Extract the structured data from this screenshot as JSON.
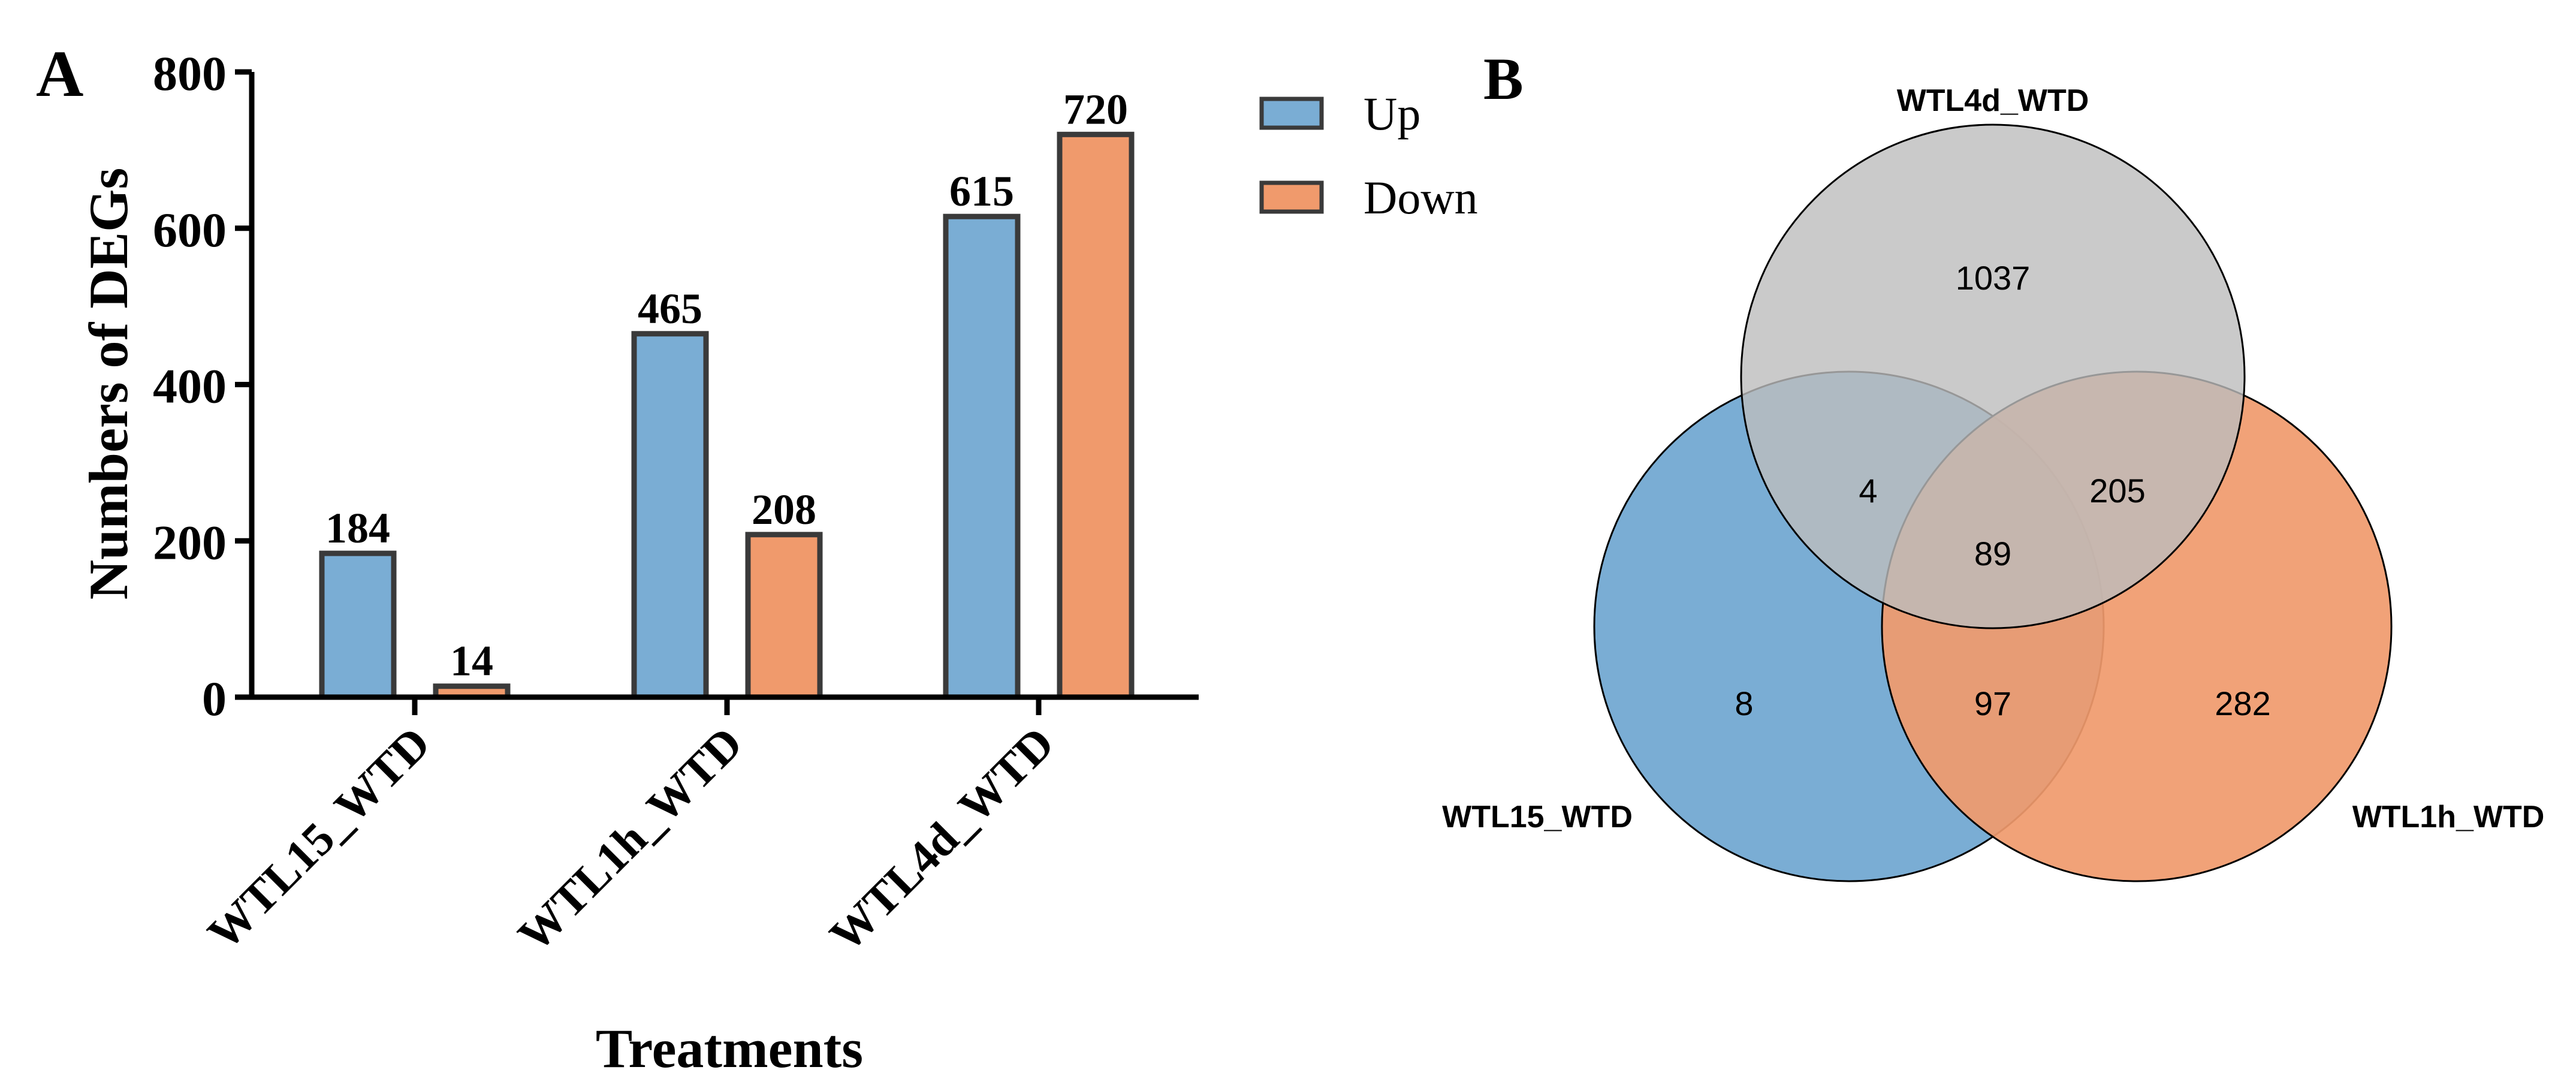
{
  "chart_data": [
    {
      "panel": "A",
      "type": "bar",
      "title": "",
      "xlabel": "Treatments",
      "ylabel": "Numbers of DEGs",
      "ylim": [
        0,
        800
      ],
      "yticks": [
        0,
        200,
        400,
        600,
        800
      ],
      "categories": [
        "WTL15_WTD",
        "WTL1h_WTD",
        "WTL4d_WTD"
      ],
      "series": [
        {
          "name": "Up",
          "values": [
            184,
            465,
            615
          ],
          "color": "#7aadd4"
        },
        {
          "name": "Down",
          "values": [
            14,
            208,
            720
          ],
          "color": "#f09a6c"
        }
      ],
      "data_labels": true,
      "legend": {
        "placement": "top-right",
        "entries": [
          "Up",
          "Down"
        ]
      },
      "bar_edge_color": "#3a3a3a"
    },
    {
      "panel": "B",
      "type": "venn",
      "sets": [
        {
          "name": "WTL4d_WTD",
          "color": "#bdbdbd"
        },
        {
          "name": "WTL15_WTD",
          "color": "#7aadd4"
        },
        {
          "name": "WTL1h_WTD",
          "color": "#f09a6c"
        }
      ],
      "regions": {
        "WTL4d_WTD_only": 1037,
        "WTL15_WTD_and_WTL4d_WTD": 4,
        "WTL4d_WTD_and_WTL1h_WTD": 205,
        "all_three": 89,
        "WTL15_WTD_only": 8,
        "WTL15_WTD_and_WTL1h_WTD": 97,
        "WTL1h_WTD_only": 282
      }
    }
  ]
}
